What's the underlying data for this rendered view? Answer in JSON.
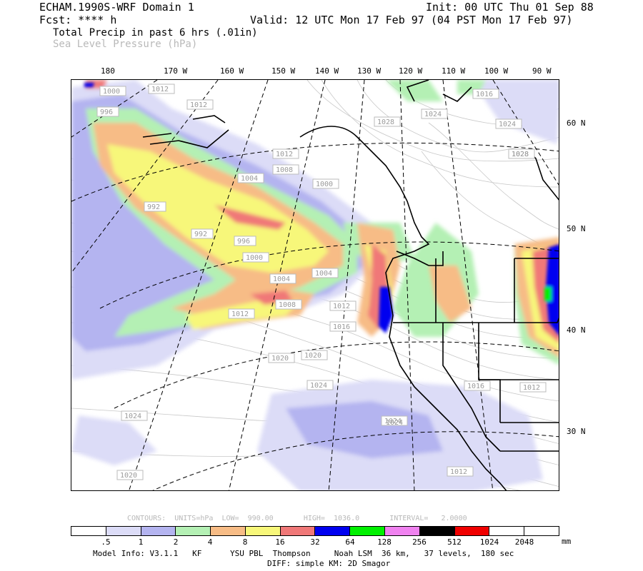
{
  "header": {
    "model_title": "ECHAM.1990S-WRF Domain 1",
    "init": "Init: 00 UTC Thu 01 Sep 88",
    "fcst": "Fcst: **** h",
    "valid": "Valid: 12 UTC Mon 17 Feb 97 (04 PST Mon 17 Feb 97)",
    "field1": "Total Precip in past 6 hrs (.01in)",
    "field2": "Sea Level Pressure (hPa)"
  },
  "longitude_labels": [
    "180",
    "170 W",
    "160 W",
    "150 W",
    "140 W",
    "130 W",
    "120 W",
    "110 W",
    "100 W",
    "90 W"
  ],
  "latitude_labels": [
    "60 N",
    "50 N",
    "40 N",
    "30 N"
  ],
  "isobar_labels": [
    "1000",
    "1012",
    "1012",
    "996",
    "1012",
    "1008",
    "1004",
    "1000",
    "992",
    "992",
    "996",
    "1000",
    "1004",
    "1004",
    "1008",
    "1012",
    "1012",
    "1016",
    "1020",
    "1020",
    "1024",
    "1024",
    "1024",
    "1024",
    "1028",
    "1028",
    "1016",
    "1024",
    "1028",
    "1016",
    "1012",
    "1012",
    "1020",
    "1024"
  ],
  "contours_line": "CONTOURS:  UNITS=hPa  LOW=  990.00       HIGH=  1036.0       INTERVAL=   2.0000",
  "legend": {
    "colors": [
      "#ffffff",
      "#dcdcf7",
      "#b4b4f0",
      "#b4f0b4",
      "#f7bc86",
      "#f7f77a",
      "#f07878",
      "#0000f0",
      "#00f000",
      "#f082f0",
      "#000000",
      "#f00000",
      "#ffffff",
      "#ffffff"
    ],
    "ticks": [
      ".5",
      "1",
      "2",
      "4",
      "8",
      "16",
      "32",
      "64",
      "128",
      "256",
      "512",
      "1024",
      "2048"
    ],
    "units": "mm"
  },
  "footer": {
    "line1": "Model Info: V3.1.1   KF      YSU PBL  Thompson     Noah LSM  36 km,   37 levels,  180 sec",
    "line2": "DIFF: simple KM: 2D Smagor"
  }
}
